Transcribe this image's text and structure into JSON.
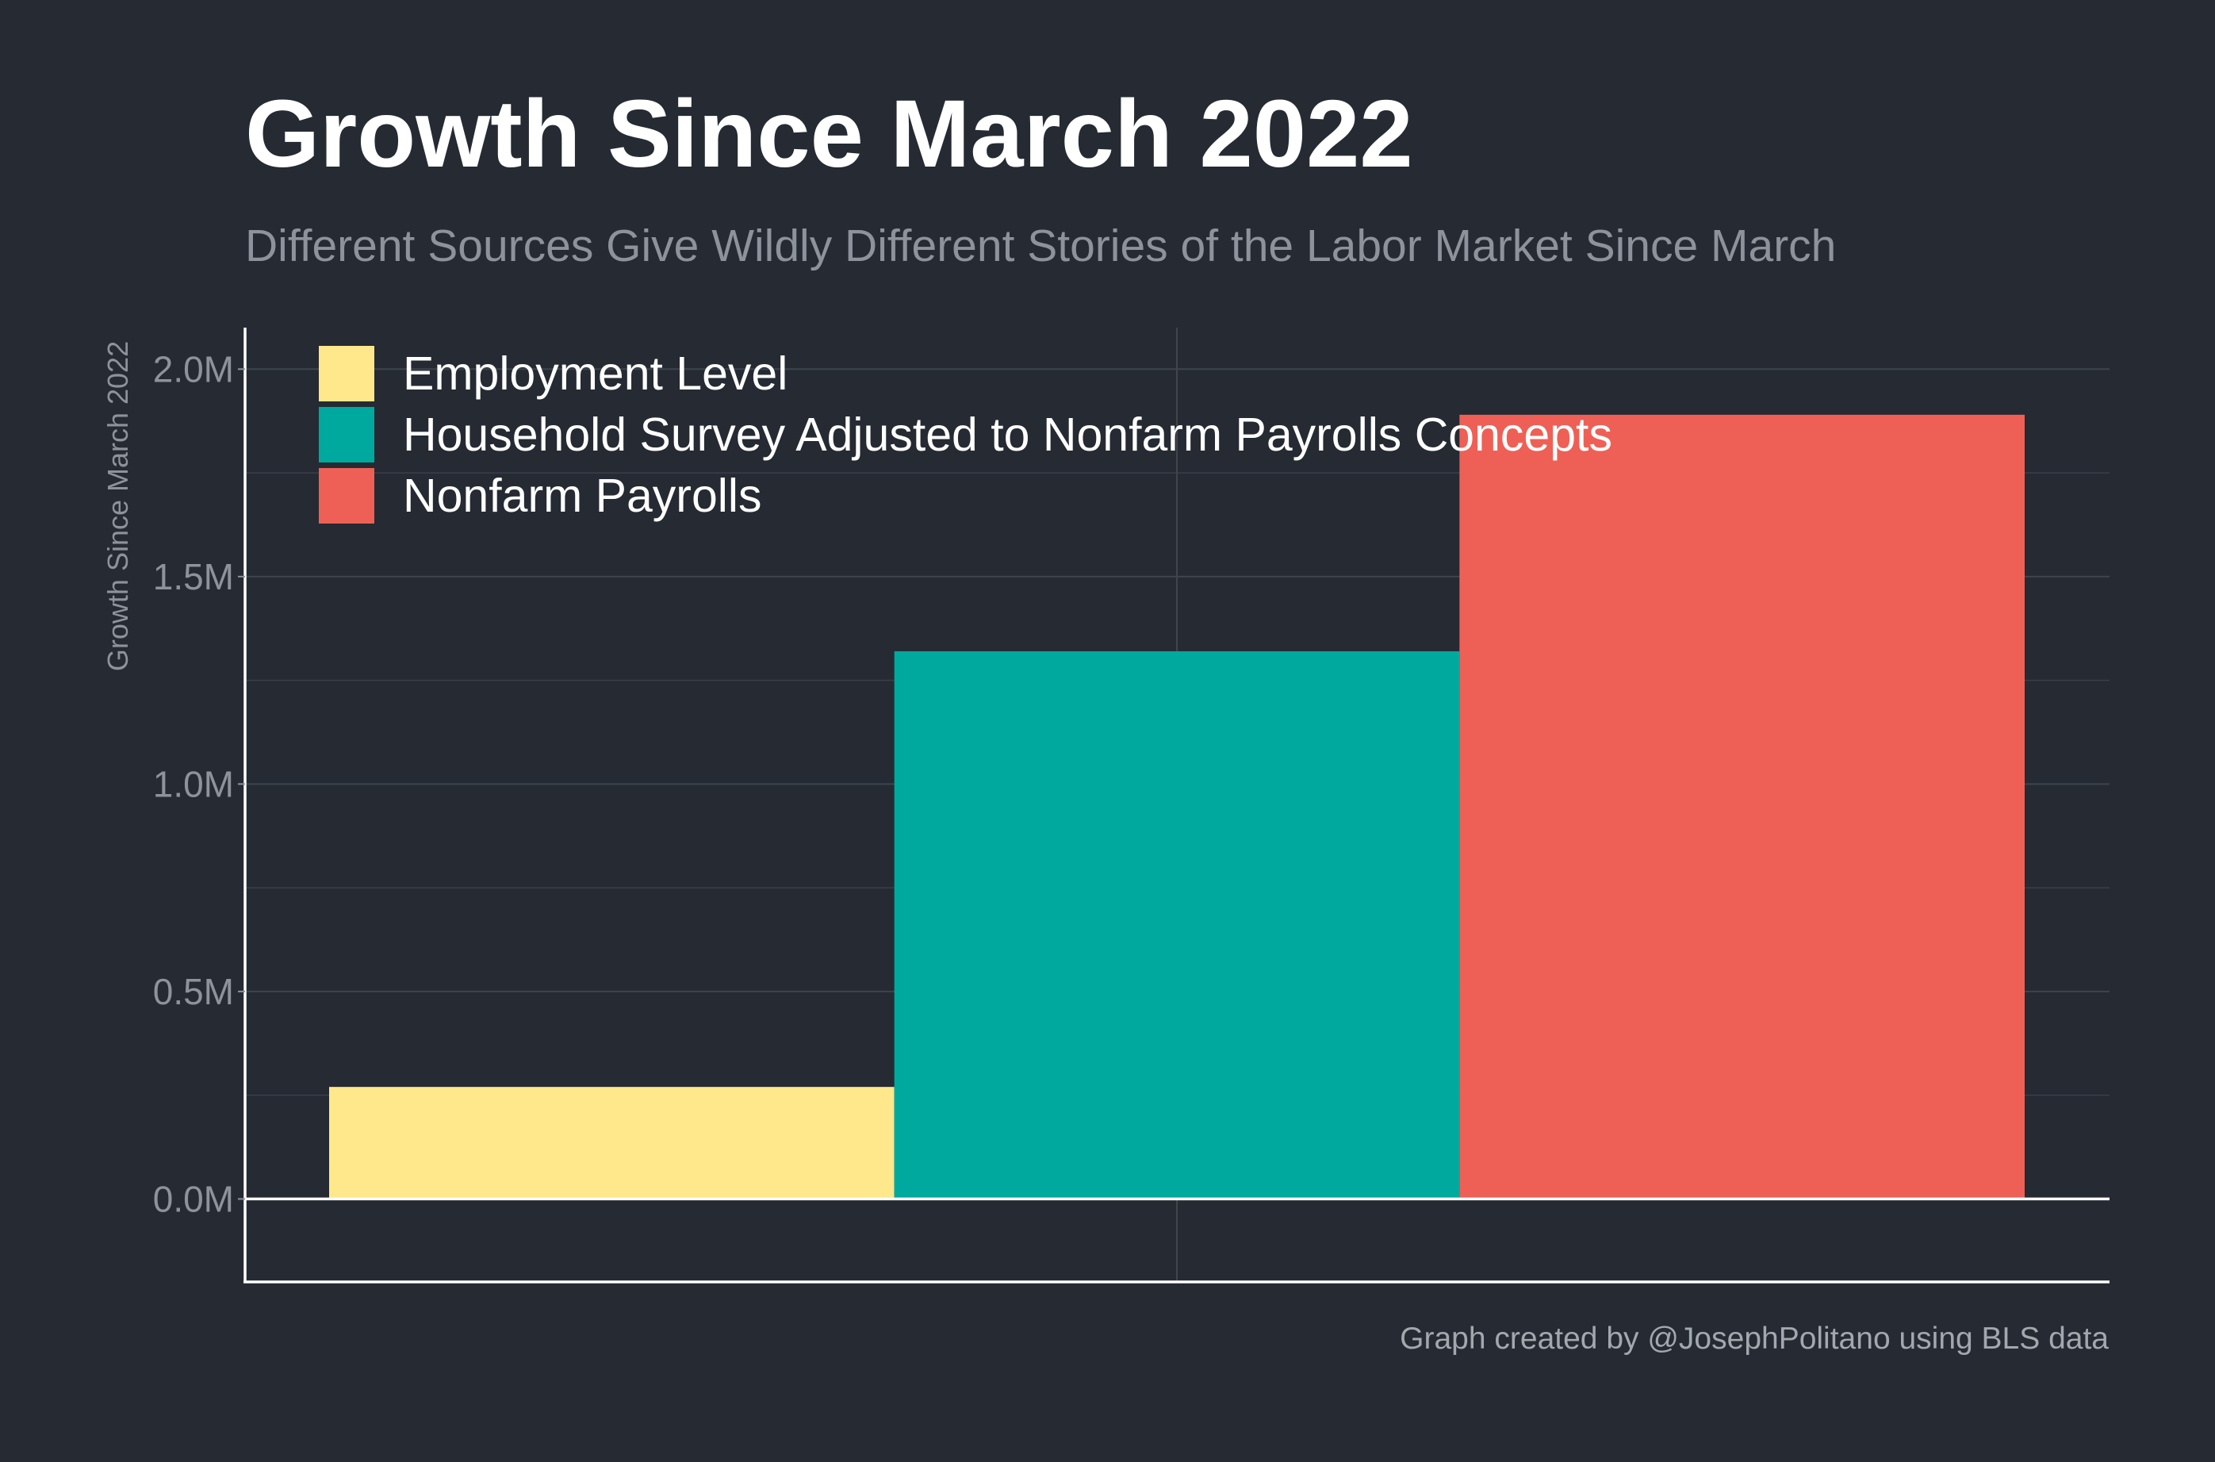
{
  "chart_data": {
    "type": "bar",
    "title": "Growth Since March 2022",
    "subtitle": "Different Sources Give Wildly Different Stories of the Labor Market Since March",
    "ylabel": "Growth Since March 2022",
    "xlabel": "",
    "caption": "Graph created by @JosephPolitano using BLS data",
    "ylim": [
      -0.2,
      2.1
    ],
    "y_ticks": [
      0.0,
      0.5,
      1.0,
      1.5,
      2.0
    ],
    "y_tick_labels": [
      "0.0M",
      "0.5M",
      "1.0M",
      "1.5M",
      "2.0M"
    ],
    "unit": "M",
    "grid": true,
    "legend_position": "top-left",
    "series": [
      {
        "name": "Employment Level",
        "value": 0.27,
        "color": "#ffe78c"
      },
      {
        "name": "Household Survey Adjusted to Nonfarm Payrolls Concepts",
        "value": 1.32,
        "color": "#00a99d"
      },
      {
        "name": "Nonfarm Payrolls",
        "value": 1.89,
        "color": "#ee6056"
      }
    ]
  }
}
